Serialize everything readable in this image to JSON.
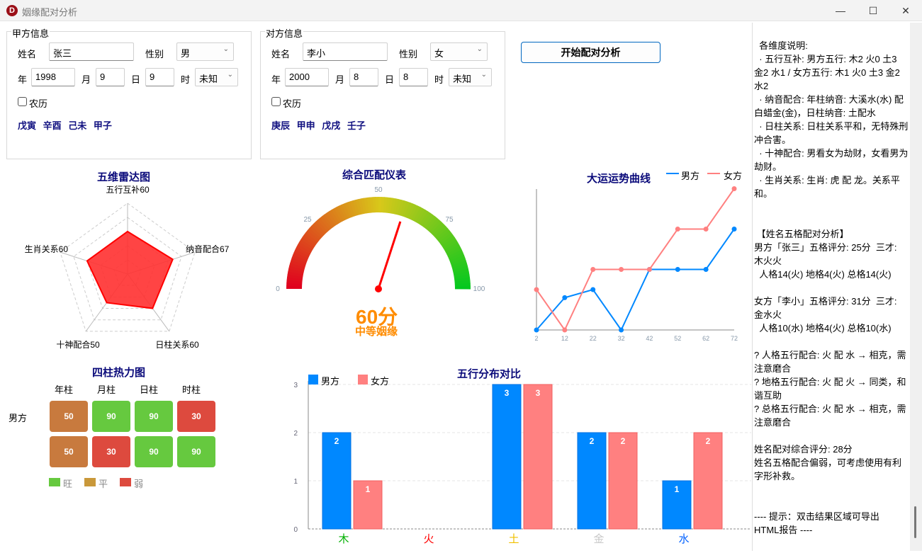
{
  "window": {
    "title": "姻缘配对分析",
    "icon_letter": "D",
    "minimize": "—",
    "maximize": "☐",
    "close": "✕"
  },
  "party_a": {
    "title": "甲方信息",
    "name_label": "姓名",
    "name": "张三",
    "gender_label": "性别",
    "gender": "男",
    "year_label": "年",
    "year": "1998",
    "month_label": "月",
    "month": "9",
    "day_label": "日",
    "day": "9",
    "hour_label": "时",
    "hour": "未知",
    "lunar_label": "农历",
    "lunar_checked": false,
    "ganzhi": "戊寅 辛酉 己未 甲子"
  },
  "party_b": {
    "title": "对方信息",
    "name_label": "姓名",
    "name": "李小",
    "gender_label": "性别",
    "gender": "女",
    "year_label": "年",
    "year": "2000",
    "month_label": "月",
    "month": "8",
    "day_label": "日",
    "day": "8",
    "hour_label": "时",
    "hour": "未知",
    "lunar_label": "农历",
    "lunar_checked": false,
    "ganzhi": "庚辰 甲申 戊戌 壬子"
  },
  "start_button": "开始配对分析",
  "radar": {
    "title": "五维雷达图",
    "max": 100,
    "axes": [
      {
        "label": "五行互补60",
        "value": 60
      },
      {
        "label": "纳音配合67",
        "value": 67
      },
      {
        "label": "日柱关系60",
        "value": 60
      },
      {
        "label": "十神配合50",
        "value": 50
      },
      {
        "label": "生肖关系60",
        "value": 60
      }
    ],
    "fill": "#ff3030"
  },
  "gauge": {
    "title": "综合匹配仪表",
    "min": 0,
    "max": 100,
    "ticks": [
      "0",
      "25",
      "50",
      "75",
      "100"
    ],
    "value": 60,
    "score_text": "60分",
    "level_text": "中等姻缘",
    "colors": {
      "low": "#e0001e",
      "mid": "#d8c81a",
      "high": "#00c81e",
      "text": "#ff8c00"
    }
  },
  "chart_data": [
    {
      "type": "line",
      "title": "大运运势曲线",
      "x": [
        2,
        12,
        22,
        32,
        42,
        52,
        62,
        72
      ],
      "series": [
        {
          "name": "男方",
          "color": "#0088ff",
          "values": [
            0,
            0.8,
            1,
            0,
            1.5,
            1.5,
            1.5,
            2.5
          ]
        },
        {
          "name": "女方",
          "color": "#ff8080",
          "values": [
            1,
            0,
            1.5,
            1.5,
            1.5,
            2.5,
            2.5,
            3.5
          ]
        }
      ],
      "legend": "top-right"
    },
    {
      "type": "bar",
      "title": "五行分布对比",
      "categories": [
        "木",
        "火",
        "土",
        "金",
        "水"
      ],
      "category_colors": [
        "#00b000",
        "#ff0000",
        "#f0c000",
        "#c8c8c8",
        "#0060ff"
      ],
      "series": [
        {
          "name": "男方",
          "color": "#0088ff",
          "values": [
            2,
            0,
            3,
            2,
            1
          ]
        },
        {
          "name": "女方",
          "color": "#ff8080",
          "values": [
            1,
            0,
            3,
            2,
            2
          ]
        }
      ],
      "yticks": [
        "0",
        "1",
        "2",
        "3"
      ],
      "ylim": [
        0,
        3
      ],
      "grid": true,
      "legend": "top-left"
    },
    {
      "type": "heatmap",
      "title": "四柱热力图",
      "columns": [
        "年柱",
        "月柱",
        "日柱",
        "时柱"
      ],
      "rows": [
        {
          "label": "男方",
          "values": [
            50,
            90,
            90,
            30
          ]
        },
        {
          "label": "",
          "values": [
            50,
            30,
            90,
            90
          ]
        }
      ],
      "legend": [
        {
          "label": "旺",
          "color": "#66c93f"
        },
        {
          "label": "平",
          "color": "#c9983a"
        },
        {
          "label": "弱",
          "color": "#dd4a3e"
        }
      ],
      "cell_colors": {
        "90": "#66c93f",
        "50": "#c87a3e",
        "30": "#dd4a3e"
      }
    }
  ],
  "result_lines": [
    "  各维度说明:",
    "  · 五行互补: 男方五行: 木2 火0 土3",
    "金2 水1 / 女方五行: 木1 火0 土3 金2",
    "水2",
    "  · 纳音配合: 年柱纳音: 大溪水(水) 配",
    "白蜡金(金)，日柱纳音: 土配水",
    "  · 日柱关系: 日柱关系平和，无特殊刑",
    "冲合害。",
    "  · 十神配合: 男看女为劫财，女看男为",
    "劫财。",
    "  · 生肖关系: 生肖: 虎 配 龙。关系平",
    "和。",
    "",
    "",
    " 【姓名五格配对分析】",
    "男方「张三」五格评分: 25分  三才:",
    "木火火",
    "  人格14(火) 地格4(火) 总格14(火)",
    "",
    "女方「李小」五格评分: 31分  三才:",
    "金水火",
    "  人格10(水) 地格4(火) 总格10(水)",
    "",
    "? 人格五行配合: 火 配 水 → 相克，需",
    "注意磨合",
    "? 地格五行配合: 火 配 火 → 同类，和",
    "谐互助",
    "? 总格五行配合: 火 配 水 → 相克，需",
    "注意磨合",
    "",
    "姓名配对综合评分: 28分",
    "姓名五格配合偏弱，可考虑使用有利",
    "字形补救。",
    "",
    "",
    "---- 提示：双击结果区域可导出",
    "HTML报告 ----"
  ]
}
